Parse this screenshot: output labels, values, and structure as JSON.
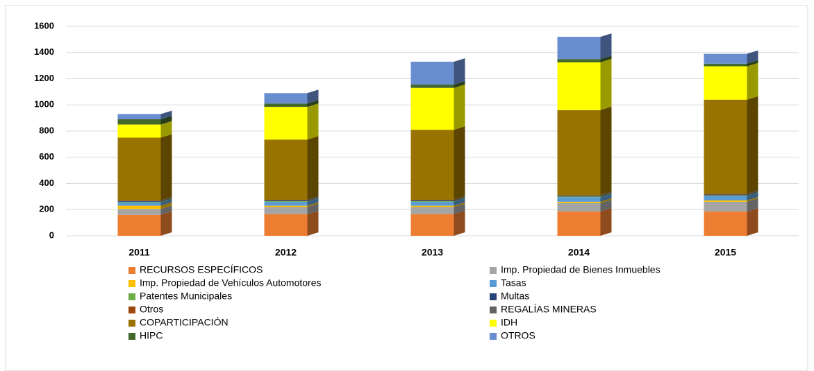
{
  "chart_data": {
    "type": "bar",
    "stacked": true,
    "three_d": true,
    "categories": [
      "2011",
      "2012",
      "2013",
      "2014",
      "2015"
    ],
    "ylim": [
      0,
      1600
    ],
    "yticks": [
      0,
      200,
      400,
      600,
      800,
      1000,
      1200,
      1400,
      1600
    ],
    "grid": true,
    "series": [
      {
        "name": "RECURSOS ESPECÍFICOS",
        "color": "#ED7D31",
        "values": [
          160,
          165,
          165,
          185,
          185
        ]
      },
      {
        "name": "Imp. Propiedad de Bienes Inmuebles",
        "color": "#A5A5A5",
        "values": [
          45,
          55,
          55,
          65,
          75
        ]
      },
      {
        "name": "Imp. Propiedad de Vehículos Automotores",
        "color": "#FFC000",
        "values": [
          25,
          10,
          10,
          10,
          10
        ]
      },
      {
        "name": "Tasas",
        "color": "#5B9BD5",
        "values": [
          25,
          30,
          30,
          35,
          35
        ]
      },
      {
        "name": "Patentes Municipales",
        "color": "#70AD47",
        "values": [
          5,
          5,
          5,
          5,
          5
        ]
      },
      {
        "name": "Multas",
        "color": "#264478",
        "values": [
          5,
          5,
          5,
          5,
          5
        ]
      },
      {
        "name": "Otros",
        "color": "#9E480E",
        "values": [
          3,
          3,
          3,
          3,
          3
        ]
      },
      {
        "name": "REGALÍAS MINERAS",
        "color": "#636363",
        "values": [
          2,
          2,
          2,
          2,
          2
        ]
      },
      {
        "name": "COPARTICIPACIÓN",
        "color": "#997300",
        "values": [
          480,
          460,
          535,
          650,
          720
        ]
      },
      {
        "name": "IDH",
        "color": "#FFFF00",
        "values": [
          100,
          250,
          320,
          365,
          255
        ]
      },
      {
        "name": "HIPC",
        "color": "#43682B",
        "values": [
          40,
          25,
          25,
          25,
          20
        ]
      },
      {
        "name": "OTROS",
        "color": "#698ED0",
        "values": [
          40,
          80,
          175,
          170,
          75
        ]
      }
    ]
  }
}
